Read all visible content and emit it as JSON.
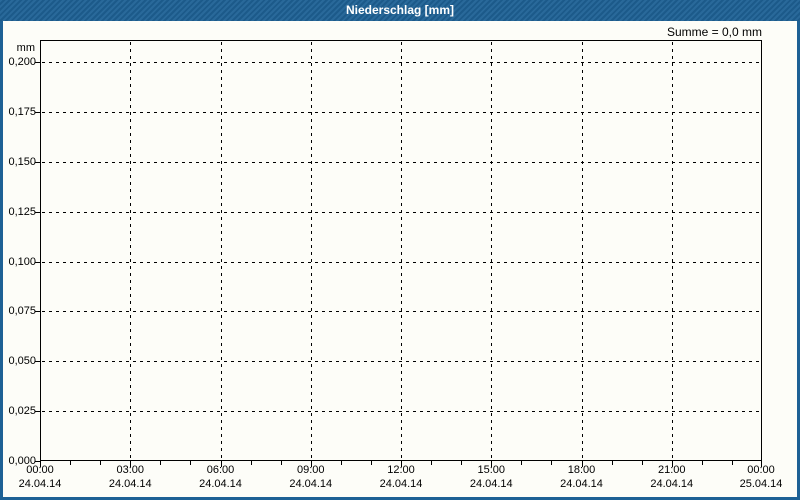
{
  "window": {
    "title": "Niederschlag [mm]"
  },
  "header": {
    "sum_label": "Summe = 0,0 mm"
  },
  "chart_data": {
    "type": "line",
    "title": "Niederschlag [mm]",
    "ylabel": "mm",
    "ylim": [
      0,
      0.2
    ],
    "y_headroom_value": 0.011,
    "grid": true,
    "legend_position": "none",
    "summary_text": "Summe = 0,0 mm",
    "series": [
      {
        "name": "Niederschlag",
        "values": []
      }
    ],
    "y_ticks": [
      {
        "value": 0.2,
        "label": "0,200"
      },
      {
        "value": 0.175,
        "label": "0,175"
      },
      {
        "value": 0.15,
        "label": "0,150"
      },
      {
        "value": 0.125,
        "label": "0,125"
      },
      {
        "value": 0.1,
        "label": "0,100"
      },
      {
        "value": 0.075,
        "label": "0,075"
      },
      {
        "value": 0.05,
        "label": "0,050"
      },
      {
        "value": 0.025,
        "label": "0,025"
      },
      {
        "value": 0.0,
        "label": "0,000"
      }
    ],
    "x_ticks": [
      {
        "time": "00:00",
        "date": "24.04.14"
      },
      {
        "time": "03:00",
        "date": "24.04.14"
      },
      {
        "time": "06:00",
        "date": "24.04.14"
      },
      {
        "time": "09:00",
        "date": "24.04.14"
      },
      {
        "time": "12:00",
        "date": "24.04.14"
      },
      {
        "time": "15:00",
        "date": "24.04.14"
      },
      {
        "time": "18:00",
        "date": "24.04.14"
      },
      {
        "time": "21:00",
        "date": "24.04.14"
      },
      {
        "time": "00:00",
        "date": "25.04.14"
      }
    ],
    "x_hours_total": 24,
    "x_major_step_hours": 3,
    "x_minor_step_hours": 1
  },
  "colors": {
    "titlebar_bg": "#1e6195",
    "titlebar_text": "#ffffff",
    "window_border": "#1e6195",
    "background": "#fdfdf8",
    "plot_border": "#000000",
    "grid": "#000000",
    "text": "#000000"
  }
}
